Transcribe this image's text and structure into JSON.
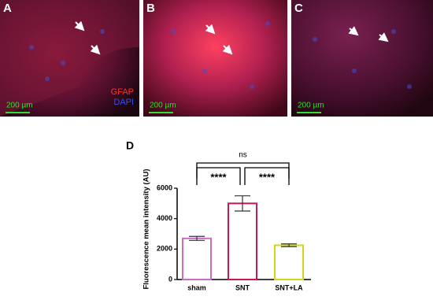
{
  "panels": [
    {
      "label": "A",
      "scale_bar": "200 µm"
    },
    {
      "label": "B",
      "scale_bar": "200 µm"
    },
    {
      "label": "C",
      "scale_bar": "200 µm"
    }
  ],
  "stain_legend": [
    "GFAP",
    "DAPI"
  ],
  "chart_data": {
    "type": "bar",
    "panel_label": "D",
    "categories": [
      "sham",
      "SNT",
      "SNT+LA"
    ],
    "values": [
      2700,
      5000,
      2250
    ],
    "errors": [
      130,
      500,
      90
    ],
    "colors": [
      "#c86cc8",
      "#c8185a",
      "#d4d41c"
    ],
    "ylabel": "Fluorescence mean intensity (AU)",
    "ylim": [
      0,
      6000
    ],
    "yticks": [
      0,
      2000,
      4000,
      6000
    ],
    "significance": [
      "****",
      "****",
      "ns"
    ]
  }
}
